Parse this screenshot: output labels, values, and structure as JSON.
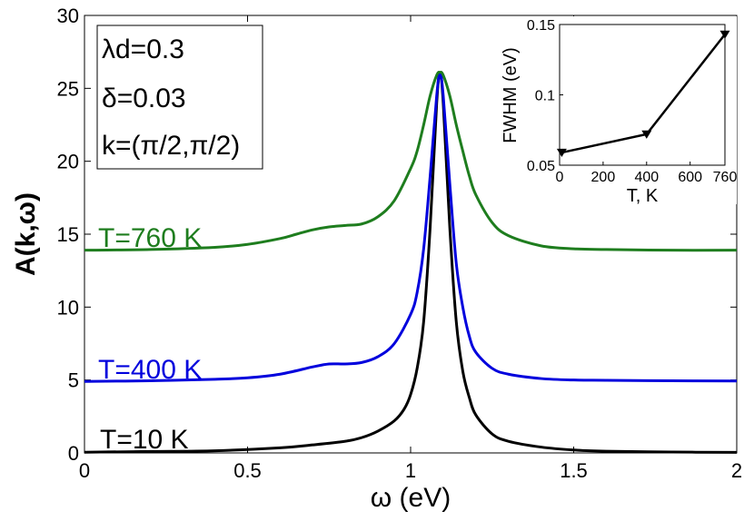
{
  "chart_data": [
    {
      "type": "line",
      "xlabel": "ω (eV)",
      "ylabel": "A(k,ω)",
      "xlim": [
        0,
        2
      ],
      "ylim": [
        0,
        30
      ],
      "xticks": [
        0,
        0.5,
        1,
        1.5,
        2
      ],
      "xtick_labels": [
        "0",
        "0.5",
        "1",
        "1.5",
        "2"
      ],
      "yticks": [
        0,
        5,
        10,
        15,
        20,
        25,
        30
      ],
      "ytick_labels": [
        "0",
        "5",
        "10",
        "15",
        "20",
        "25",
        "30"
      ],
      "annotations": [
        "λd=0.3",
        "δ=0.03",
        "k=(π/2,π/2)"
      ],
      "series": [
        {
          "name": "T=10 K",
          "label": "T=10 K",
          "color": "#000000",
          "x": [
            0,
            0.2,
            0.4,
            0.6,
            0.7,
            0.8,
            0.85,
            0.9,
            0.95,
            0.98,
            1.0,
            1.02,
            1.04,
            1.06,
            1.08,
            1.09,
            1.1,
            1.12,
            1.14,
            1.16,
            1.18,
            1.2,
            1.25,
            1.3,
            1.4,
            1.5,
            1.6,
            1.8,
            2.0
          ],
          "y": [
            0.05,
            0.1,
            0.15,
            0.35,
            0.55,
            0.8,
            1.05,
            1.5,
            2.2,
            3.0,
            4.0,
            5.8,
            9.0,
            15.5,
            24.0,
            26.0,
            24.0,
            15.5,
            9.0,
            5.6,
            3.8,
            2.6,
            1.3,
            0.8,
            0.4,
            0.2,
            0.12,
            0.06,
            0.04
          ]
        },
        {
          "name": "T=400 K",
          "label": "T=400 K",
          "color": "#0000dd",
          "x": [
            0,
            0.2,
            0.4,
            0.5,
            0.6,
            0.7,
            0.75,
            0.8,
            0.85,
            0.9,
            0.95,
            1.0,
            1.02,
            1.04,
            1.06,
            1.08,
            1.09,
            1.1,
            1.12,
            1.14,
            1.16,
            1.18,
            1.2,
            1.25,
            1.3,
            1.4,
            1.5,
            1.6,
            1.8,
            2.0
          ],
          "y": [
            4.9,
            4.95,
            5.05,
            5.15,
            5.4,
            5.9,
            6.1,
            6.1,
            6.2,
            6.6,
            7.5,
            9.5,
            11.0,
            14.0,
            19.0,
            24.5,
            26.0,
            24.5,
            18.5,
            13.0,
            10.0,
            8.0,
            6.9,
            5.8,
            5.4,
            5.1,
            5.0,
            4.98,
            4.95,
            4.93
          ]
        },
        {
          "name": "T=760 K",
          "label": "T=760 K",
          "color": "#1e7d1e",
          "x": [
            0,
            0.2,
            0.4,
            0.5,
            0.6,
            0.65,
            0.7,
            0.75,
            0.8,
            0.85,
            0.9,
            0.95,
            1.0,
            1.02,
            1.04,
            1.06,
            1.08,
            1.09,
            1.1,
            1.12,
            1.14,
            1.16,
            1.18,
            1.2,
            1.25,
            1.3,
            1.4,
            1.5,
            1.6,
            1.8,
            2.0
          ],
          "y": [
            13.9,
            13.95,
            14.1,
            14.3,
            14.7,
            15.0,
            15.3,
            15.5,
            15.6,
            15.7,
            16.2,
            17.3,
            19.5,
            20.7,
            22.5,
            24.5,
            25.9,
            26.1,
            25.9,
            24.5,
            22.5,
            20.7,
            19.0,
            17.7,
            15.8,
            14.9,
            14.2,
            14.0,
            13.95,
            13.9,
            13.9
          ]
        }
      ]
    },
    {
      "type": "line",
      "xlabel": "T, K",
      "ylabel": "FWHM (eV)",
      "xlim": [
        0,
        760
      ],
      "ylim": [
        0.05,
        0.15
      ],
      "xticks": [
        0,
        200,
        400,
        600,
        760
      ],
      "xtick_labels": [
        "0",
        "200",
        "400",
        "600",
        "760"
      ],
      "yticks": [
        0.05,
        0.1,
        0.15
      ],
      "ytick_labels": [
        "0.05",
        "0.1",
        "0.15"
      ],
      "series": [
        {
          "name": "FWHM",
          "color": "#000000",
          "marker": "triangle-down",
          "x": [
            10,
            400,
            760
          ],
          "y": [
            0.059,
            0.072,
            0.143
          ]
        }
      ]
    }
  ]
}
